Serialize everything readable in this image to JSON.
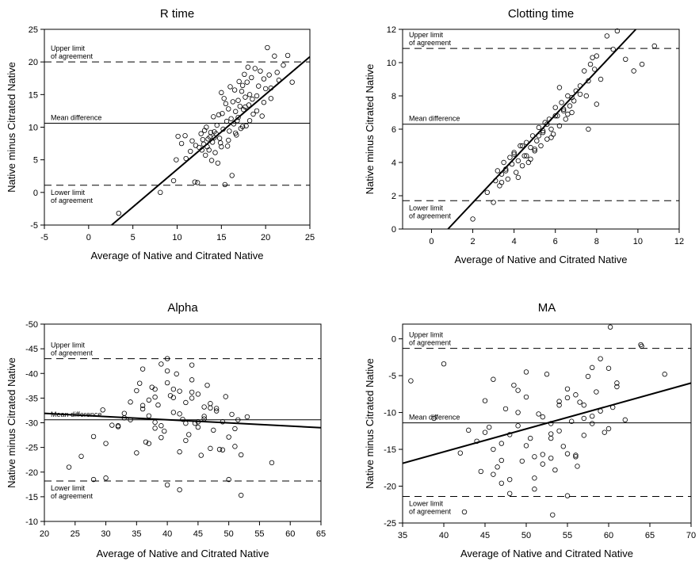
{
  "chart_data": [
    {
      "id": "rtime",
      "type": "scatter",
      "title": "R time",
      "xlabel": "Average of Native and Citrated Native",
      "ylabel": "Native minus Citrated Native",
      "xlim": [
        -5,
        25
      ],
      "ylim": [
        -5,
        25
      ],
      "xticks": [
        "-5",
        "0",
        "5",
        "10",
        "15",
        "20",
        "25"
      ],
      "yticks": [
        "-5",
        "0",
        "5",
        "10",
        "15",
        "20",
        "25"
      ],
      "y_inverted": false,
      "reference_lines": {
        "upper": {
          "value": 20.0,
          "label": [
            "Upper limit",
            "of agreement"
          ]
        },
        "mean": {
          "value": 10.6,
          "label": [
            "Mean difference"
          ]
        },
        "lower": {
          "value": 1.1,
          "label": [
            "Lower limit",
            "of agreement"
          ]
        }
      },
      "regression": {
        "x": [
          2.6,
          25
        ],
        "y": [
          -5,
          20.8
        ]
      },
      "points": {
        "x": [
          3.4,
          8.1,
          9.6,
          9.9,
          10.1,
          10.5,
          10.9,
          11.0,
          11.5,
          11.7,
          12.0,
          12.1,
          12.3,
          12.5,
          12.7,
          12.9,
          13.0,
          13.1,
          13.2,
          13.3,
          13.4,
          13.6,
          13.7,
          13.8,
          13.9,
          14.0,
          14.1,
          14.2,
          14.3,
          14.4,
          14.5,
          14.6,
          14.7,
          14.8,
          14.9,
          15.0,
          15.1,
          15.2,
          15.3,
          15.4,
          15.5,
          15.6,
          15.7,
          15.8,
          15.9,
          16.0,
          16.1,
          16.2,
          16.3,
          16.4,
          16.5,
          16.6,
          16.7,
          16.8,
          16.9,
          17.0,
          17.1,
          17.2,
          17.3,
          17.4,
          17.5,
          17.6,
          17.7,
          17.8,
          17.9,
          18.0,
          18.1,
          18.2,
          18.4,
          18.6,
          18.8,
          19.0,
          19.2,
          19.4,
          19.6,
          19.8,
          20.0,
          20.2,
          20.4,
          20.6,
          21.0,
          21.5,
          22.0,
          22.5,
          23.0,
          15.0,
          15.8,
          16.6,
          17.4,
          18.2,
          19.0,
          19.8,
          14.2,
          13.5,
          12.8,
          16.9,
          17.7,
          18.5,
          20.6,
          21.3
        ],
        "y": [
          -3.2,
          0.0,
          1.8,
          5.0,
          8.6,
          7.5,
          8.7,
          5.2,
          6.3,
          7.9,
          1.6,
          7.2,
          1.5,
          6.9,
          9.0,
          8.1,
          7.4,
          9.5,
          5.7,
          10.0,
          7.0,
          6.5,
          8.5,
          9.2,
          4.9,
          7.7,
          11.6,
          8.4,
          6.1,
          9.0,
          10.3,
          4.5,
          11.9,
          8.3,
          7.6,
          15.3,
          12.1,
          9.7,
          14.4,
          1.2,
          13.6,
          10.9,
          7.1,
          12.8,
          9.4,
          16.2,
          11.3,
          2.6,
          13.9,
          10.5,
          15.7,
          12.4,
          8.8,
          11.0,
          14.1,
          17.0,
          13.2,
          9.8,
          15.5,
          16.4,
          12.7,
          18.1,
          14.6,
          10.2,
          16.9,
          19.2,
          13.4,
          15.0,
          17.6,
          12.0,
          19.0,
          14.8,
          16.3,
          18.6,
          11.7,
          17.4,
          15.9,
          22.2,
          18.0,
          14.4,
          20.9,
          17.2,
          19.5,
          21.0,
          16.9,
          7.0,
          8.0,
          9.1,
          10.1,
          11.0,
          12.5,
          13.8,
          9.3,
          8.2,
          6.5,
          11.5,
          13.1,
          14.3,
          16.0,
          18.4
        ]
      }
    },
    {
      "id": "clotting",
      "type": "scatter",
      "title": "Clotting time",
      "xlabel": "Average of Native and Citrated Native",
      "ylabel": "Native minus Citrated Native",
      "xlim": [
        -1.4,
        12
      ],
      "ylim": [
        0,
        12
      ],
      "xticks": [
        "0",
        "2",
        "4",
        "6",
        "8",
        "10",
        "12"
      ],
      "yticks": [
        "0",
        "2",
        "4",
        "6",
        "8",
        "10",
        "12"
      ],
      "y_inverted": false,
      "reference_lines": {
        "upper": {
          "value": 10.85,
          "label": [
            "Upper limit",
            "of agreement"
          ]
        },
        "mean": {
          "value": 6.3,
          "label": [
            "Mean difference"
          ]
        },
        "lower": {
          "value": 1.7,
          "label": [
            "Lower limit",
            "of agreement"
          ]
        }
      },
      "regression": {
        "x": [
          0.8,
          9.9
        ],
        "y": [
          0,
          12
        ]
      },
      "points": {
        "x": [
          2.0,
          2.7,
          3.0,
          3.1,
          3.2,
          3.3,
          3.4,
          3.5,
          3.6,
          3.7,
          3.8,
          3.9,
          4.0,
          4.1,
          4.2,
          4.3,
          4.4,
          4.5,
          4.6,
          4.7,
          4.8,
          4.9,
          5.0,
          5.1,
          5.2,
          5.3,
          5.4,
          5.5,
          5.6,
          5.7,
          5.8,
          5.9,
          6.0,
          6.1,
          6.2,
          6.3,
          6.4,
          6.5,
          6.6,
          6.7,
          6.8,
          6.9,
          7.0,
          7.2,
          7.4,
          7.5,
          7.6,
          7.7,
          7.8,
          7.9,
          8.0,
          8.2,
          8.5,
          8.8,
          9.0,
          9.4,
          9.8,
          10.2,
          10.8,
          3.6,
          4.0,
          4.4,
          4.8,
          5.2,
          5.6,
          6.0,
          6.4,
          6.8,
          7.2,
          7.6,
          8.0,
          4.2,
          5.0,
          5.8,
          6.6,
          3.4,
          4.6,
          5.4,
          6.2
        ],
        "y": [
          0.6,
          2.2,
          1.6,
          2.9,
          3.5,
          2.6,
          3.3,
          4.0,
          3.6,
          3.0,
          4.3,
          3.9,
          4.6,
          3.4,
          4.1,
          5.0,
          3.8,
          4.4,
          5.2,
          4.0,
          4.9,
          5.6,
          4.7,
          5.3,
          6.1,
          5.0,
          5.8,
          6.4,
          5.4,
          6.6,
          6.0,
          5.7,
          7.3,
          6.8,
          6.2,
          7.6,
          7.1,
          6.6,
          8.0,
          7.4,
          7.9,
          7.7,
          8.3,
          8.6,
          9.5,
          8.0,
          8.9,
          9.9,
          10.3,
          9.6,
          10.4,
          9.0,
          11.6,
          10.8,
          11.9,
          10.2,
          9.5,
          9.9,
          11.0,
          3.5,
          4.5,
          5.0,
          4.2,
          5.6,
          6.3,
          6.8,
          7.2,
          7.0,
          8.1,
          6.0,
          7.5,
          3.1,
          4.8,
          5.5,
          6.9,
          2.8,
          4.4,
          5.9,
          8.5
        ]
      }
    },
    {
      "id": "alpha",
      "type": "scatter",
      "title": "Alpha",
      "xlabel": "Average of Native and Citrated Native",
      "ylabel": "Native minus Citrated Native",
      "xlim": [
        20,
        65
      ],
      "ylim": [
        -10,
        -50
      ],
      "xticks": [
        "20",
        "25",
        "30",
        "35",
        "40",
        "45",
        "50",
        "55",
        "60",
        "65"
      ],
      "yticks": [
        "-50",
        "-45",
        "-40",
        "-35",
        "-30",
        "-25",
        "-20",
        "-15",
        "-10"
      ],
      "y_inverted": true,
      "reference_lines": {
        "upper": {
          "value": -43.0,
          "label": [
            "Upper limit",
            "of agreement"
          ]
        },
        "mean": {
          "value": -30.6,
          "label": [
            "Mean difference"
          ]
        },
        "lower": {
          "value": -18.2,
          "label": [
            "Lower limit",
            "of agreement"
          ]
        }
      },
      "regression": {
        "x": [
          20,
          65
        ],
        "y": [
          -31.9,
          -29.0
        ]
      },
      "points": {
        "x": [
          24,
          26,
          28,
          29.5,
          30,
          31,
          32,
          33,
          34,
          35,
          35.5,
          36,
          36.5,
          37,
          37.5,
          38,
          38.5,
          39,
          39.5,
          40,
          40.5,
          41,
          41.5,
          42,
          42.5,
          43,
          43.5,
          44,
          44.5,
          45,
          45.5,
          46,
          46.5,
          47,
          47.5,
          48,
          48.5,
          49,
          49.5,
          50,
          50.5,
          51,
          51.5,
          52,
          53,
          57,
          28,
          30,
          33,
          35,
          37,
          39,
          41,
          43,
          45,
          47,
          49,
          51,
          36,
          38,
          40,
          42,
          44,
          46,
          48,
          34,
          36,
          38,
          40,
          42,
          44,
          39,
          41,
          43,
          37,
          45,
          47,
          32,
          50,
          52,
          40,
          42,
          44,
          46,
          38
        ],
        "y": [
          -21.0,
          -23.2,
          -27.2,
          -32.6,
          -25.8,
          -29.5,
          -29.2,
          -31.0,
          -34.2,
          -36.5,
          -38.0,
          -32.8,
          -26.1,
          -34.6,
          -37.2,
          -30.1,
          -33.6,
          -41.9,
          -28.3,
          -43.0,
          -35.5,
          -32.1,
          -39.9,
          -36.4,
          -30.7,
          -34.1,
          -27.6,
          -41.7,
          -29.9,
          -35.8,
          -23.4,
          -31.3,
          -37.6,
          -33.9,
          -28.5,
          -32.4,
          -24.6,
          -30.2,
          -35.3,
          -27.1,
          -31.7,
          -28.8,
          -30.6,
          -23.5,
          -31.2,
          -21.9,
          -18.5,
          -18.8,
          -31.9,
          -23.9,
          -25.8,
          -27.0,
          -35.1,
          -26.4,
          -29.1,
          -33.0,
          -24.5,
          -25.2,
          -40.9,
          -28.9,
          -38.1,
          -24.1,
          -38.7,
          -30.8,
          -32.9,
          -30.6,
          -33.5,
          -35.2,
          -40.5,
          -31.8,
          -35.0,
          -29.4,
          -36.8,
          -29.9,
          -31.4,
          -30.2,
          -24.8,
          -29.4,
          -18.5,
          -15.3,
          -17.4,
          -16.4,
          -36.2,
          -33.2,
          -36.8
        ]
      }
    },
    {
      "id": "ma",
      "type": "scatter",
      "title": "MA",
      "xlabel": "Average of Native and Citrated Native",
      "ylabel": "Native minus Citrated Native",
      "xlim": [
        35,
        70
      ],
      "ylim": [
        -25,
        2
      ],
      "xticks": [
        "35",
        "40",
        "45",
        "50",
        "55",
        "60",
        "65",
        "70"
      ],
      "yticks": [
        "-25",
        "-20",
        "-15",
        "-10",
        "-5",
        "0"
      ],
      "y_inverted": false,
      "reference_lines": {
        "upper": {
          "value": -1.3,
          "label": [
            "Upper limit",
            "of agreement"
          ]
        },
        "mean": {
          "value": -11.4,
          "label": [
            "Mean difference"
          ]
        },
        "lower": {
          "value": -21.4,
          "label": [
            "Lower limit",
            "of agreement"
          ]
        }
      },
      "regression": {
        "x": [
          35,
          70
        ],
        "y": [
          -16.9,
          -6.0
        ]
      },
      "points": {
        "x": [
          36,
          38.8,
          40,
          42,
          43,
          44,
          44.5,
          45,
          45.5,
          46,
          46.5,
          47,
          47.5,
          48,
          48.5,
          49,
          49.5,
          50,
          50.5,
          51,
          51.5,
          52,
          52.5,
          53,
          53.5,
          54,
          54.5,
          55,
          55.5,
          56,
          56.5,
          57,
          57.5,
          58,
          58.5,
          59,
          59.5,
          60,
          60.5,
          61,
          62,
          64,
          66.8,
          46,
          48,
          50,
          52,
          54,
          56,
          58,
          60,
          47,
          49,
          51,
          53,
          55,
          57,
          59,
          61,
          45,
          47,
          49,
          51,
          53,
          55,
          57,
          50,
          52,
          54,
          56,
          58,
          46,
          48,
          53,
          55,
          60.2,
          63.9,
          42.5,
          53.2,
          56.2
        ],
        "y": [
          -5.7,
          -10.8,
          -3.4,
          -15.5,
          -12.4,
          -13.9,
          -18.0,
          -8.4,
          -12.0,
          -5.5,
          -17.4,
          -14.2,
          -9.5,
          -19.1,
          -6.3,
          -11.8,
          -16.6,
          -7.9,
          -13.5,
          -20.4,
          -10.2,
          -15.7,
          -4.8,
          -12.9,
          -17.8,
          -9.0,
          -14.6,
          -6.8,
          -11.2,
          -16.0,
          -8.6,
          -13.1,
          -5.1,
          -10.5,
          -7.2,
          -2.7,
          -12.7,
          -4.0,
          -9.3,
          -6.0,
          -11.0,
          -1.0,
          -4.8,
          -15.0,
          -13.0,
          -14.5,
          -17.0,
          -12.5,
          -15.8,
          -11.5,
          -12.2,
          -16.5,
          -10.0,
          -18.9,
          -11.5,
          -8.0,
          -10.8,
          -9.8,
          -6.5,
          -12.7,
          -19.6,
          -7.0,
          -16.0,
          -13.5,
          -15.6,
          -9.0,
          -4.5,
          -10.6,
          -8.5,
          -7.6,
          -3.9,
          -18.4,
          -21.0,
          -16.2,
          -21.3,
          1.6,
          -0.8,
          -23.5,
          -23.9,
          -17.3
        ]
      }
    }
  ]
}
